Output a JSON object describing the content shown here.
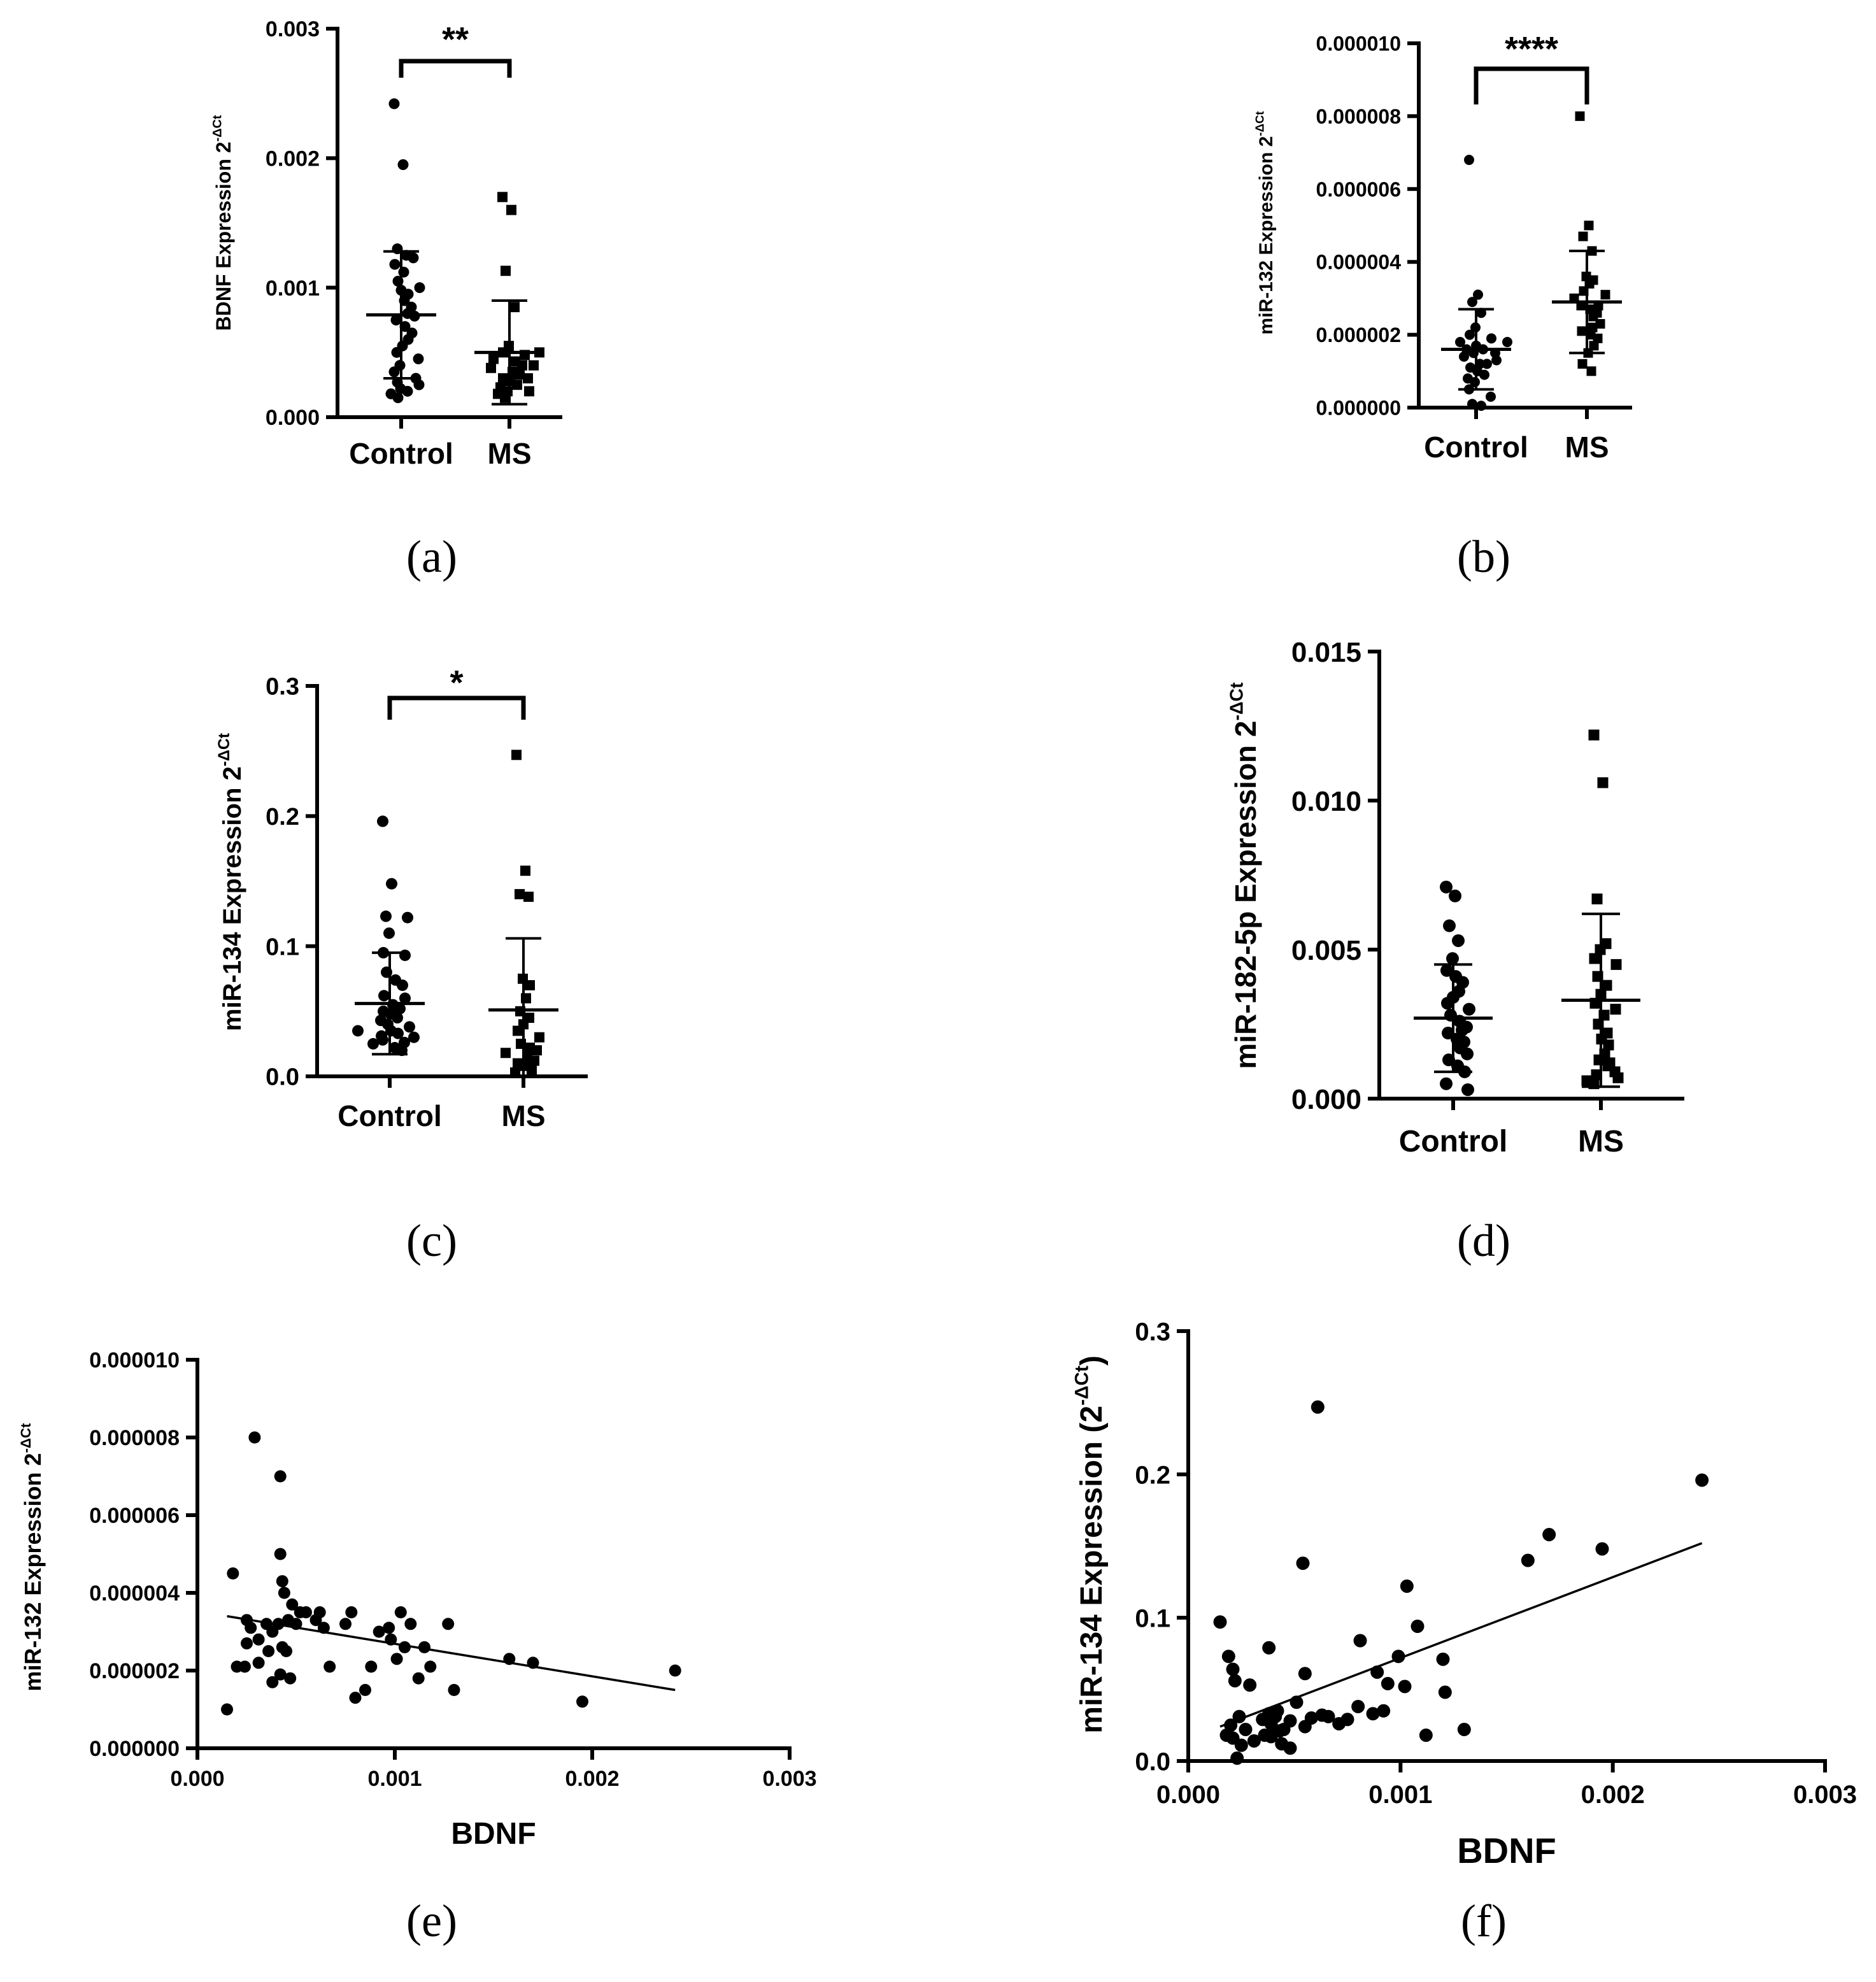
{
  "figure": {
    "panels": [
      "(a)",
      "(b)",
      "(c)",
      "(d)",
      "(e)",
      "(f)"
    ]
  },
  "chart_data": [
    {
      "panel": "(a)",
      "type": "scatter",
      "ylabel": "BDNF Expression 2",
      "ylabel_sup": "-ΔCt",
      "categories": [
        "Control",
        "MS"
      ],
      "yticks": [
        "0.000",
        "0.001",
        "0.002",
        "0.003"
      ],
      "ylim": [
        0,
        0.003
      ],
      "significance": "**",
      "groups": [
        {
          "name": "Control",
          "marker": "circle",
          "mean": 0.00079,
          "sd": 0.00049,
          "values": [
            0.00242,
            0.00195,
            0.0013,
            0.00125,
            0.00123,
            0.00118,
            0.00112,
            0.00105,
            0.001,
            0.00098,
            0.00095,
            0.0009,
            0.00085,
            0.0008,
            0.00078,
            0.00075,
            0.0007,
            0.00065,
            0.0006,
            0.00055,
            0.0005,
            0.00045,
            0.0004,
            0.00035,
            0.0003,
            0.00027,
            0.00025,
            0.00022,
            0.0002,
            0.00018,
            0.00015
          ]
        },
        {
          "name": "MS",
          "marker": "square",
          "mean": 0.0005,
          "sd": 0.0004,
          "values": [
            0.0017,
            0.0016,
            0.00113,
            0.00085,
            0.00055,
            0.0005,
            0.00048,
            0.00045,
            0.00043,
            0.0004,
            0.00038,
            0.00035,
            0.00033,
            0.0003,
            0.00028,
            0.00025,
            0.00023,
            0.0002,
            0.0002,
            0.00018,
            0.00015,
            0.0005,
            0.0004,
            0.0003
          ]
        }
      ]
    },
    {
      "panel": "(b)",
      "type": "scatter",
      "ylabel": "miR-132 Expression 2",
      "ylabel_sup": "-ΔCt",
      "categories": [
        "Control",
        "MS"
      ],
      "yticks": [
        "0.000000",
        "0.000002",
        "0.000004",
        "0.000006",
        "0.000008",
        "0.000010"
      ],
      "ylim": [
        0,
        1e-05
      ],
      "significance": "****",
      "groups": [
        {
          "name": "Control",
          "marker": "circle",
          "mean": 1.6e-06,
          "sd": 1.1e-06,
          "values": [
            6.8e-06,
            3.1e-06,
            2.9e-06,
            2.6e-06,
            2.2e-06,
            2e-06,
            1.9e-06,
            1.8e-06,
            1.8e-06,
            1.7e-06,
            1.6e-06,
            1.6e-06,
            1.5e-06,
            1.5e-06,
            1.4e-06,
            1.3e-06,
            1.2e-06,
            1.2e-06,
            1.1e-06,
            1e-06,
            9e-07,
            8e-07,
            7e-07,
            5e-07,
            3e-07,
            1e-07,
            5e-08
          ]
        },
        {
          "name": "MS",
          "marker": "square",
          "mean": 2.9e-06,
          "sd": 1.4e-06,
          "values": [
            8e-06,
            5e-06,
            4.7e-06,
            4.3e-06,
            3.6e-06,
            3.5e-06,
            3.4e-06,
            3.2e-06,
            3.1e-06,
            3e-06,
            2.8e-06,
            2.7e-06,
            2.6e-06,
            2.5e-06,
            2.3e-06,
            2.1e-06,
            2e-06,
            1.9e-06,
            1.7e-06,
            1.5e-06,
            1.2e-06,
            1e-06,
            2.8e-06,
            2.2e-06
          ]
        }
      ]
    },
    {
      "panel": "(c)",
      "type": "scatter",
      "ylabel": "miR-134 Expression 2",
      "ylabel_sup": "-ΔCt",
      "categories": [
        "Control",
        "MS"
      ],
      "yticks": [
        "0.0",
        "0.1",
        "0.2",
        "0.3"
      ],
      "ylim": [
        0,
        0.3
      ],
      "significance": "*",
      "groups": [
        {
          "name": "Control",
          "marker": "circle",
          "mean": 0.056,
          "sd": 0.039,
          "values": [
            0.196,
            0.148,
            0.123,
            0.122,
            0.11,
            0.095,
            0.093,
            0.08,
            0.074,
            0.07,
            0.062,
            0.055,
            0.052,
            0.05,
            0.048,
            0.045,
            0.043,
            0.04,
            0.038,
            0.035,
            0.033,
            0.031,
            0.03,
            0.028,
            0.026,
            0.025,
            0.022,
            0.02,
            0.035,
            0.06
          ]
        },
        {
          "name": "MS",
          "marker": "square",
          "mean": 0.051,
          "sd": 0.055,
          "values": [
            0.247,
            0.158,
            0.14,
            0.138,
            0.075,
            0.07,
            0.06,
            0.05,
            0.045,
            0.04,
            0.035,
            0.03,
            0.025,
            0.022,
            0.02,
            0.018,
            0.015,
            0.012,
            0.01,
            0.008,
            0.005,
            0.003
          ]
        }
      ]
    },
    {
      "panel": "(d)",
      "type": "scatter",
      "ylabel": "miR-182-5p Expression 2",
      "ylabel_sup": "-ΔCt",
      "categories": [
        "Control",
        "MS"
      ],
      "yticks": [
        "0.000",
        "0.005",
        "0.010",
        "0.015"
      ],
      "ylim": [
        0,
        0.015
      ],
      "groups": [
        {
          "name": "Control",
          "marker": "circle",
          "mean": 0.0027,
          "sd": 0.0018,
          "values": [
            0.0071,
            0.0068,
            0.0058,
            0.0053,
            0.0047,
            0.0043,
            0.0041,
            0.0039,
            0.0036,
            0.0034,
            0.0032,
            0.003,
            0.0028,
            0.0026,
            0.0024,
            0.0022,
            0.002,
            0.0019,
            0.0017,
            0.0015,
            0.0013,
            0.0011,
            0.0009,
            0.0005,
            0.0003,
            0.0023
          ]
        },
        {
          "name": "MS",
          "marker": "square",
          "mean": 0.0033,
          "sd": 0.0029,
          "values": [
            0.0122,
            0.0106,
            0.0067,
            0.0052,
            0.005,
            0.0047,
            0.0045,
            0.0041,
            0.0038,
            0.0035,
            0.0032,
            0.0028,
            0.0025,
            0.0022,
            0.002,
            0.0018,
            0.0015,
            0.0013,
            0.0011,
            0.0009,
            0.0008,
            0.0007,
            0.0006,
            0.0005,
            0.003,
            0.0012
          ]
        }
      ]
    },
    {
      "panel": "(e)",
      "type": "scatter",
      "xlabel": "BDNF",
      "ylabel": "miR-132 Expression 2",
      "ylabel_sup": "-ΔCt",
      "xticks": [
        "0.000",
        "0.001",
        "0.002",
        "0.003"
      ],
      "yticks": [
        "0.000000",
        "0.000002",
        "0.000004",
        "0.000006",
        "0.000008",
        "0.000010"
      ],
      "xlim": [
        0,
        0.003
      ],
      "ylim": [
        0,
        1e-05
      ],
      "regression": {
        "x": [
          0.00015,
          0.00242
        ],
        "y": [
          3.4e-06,
          1.5e-06
        ]
      },
      "points": [
        [
          0.00018,
          4.5e-06
        ],
        [
          0.00029,
          8e-06
        ],
        [
          0.00042,
          7e-06
        ],
        [
          0.00042,
          5e-06
        ],
        [
          0.00043,
          4.3e-06
        ],
        [
          0.00044,
          4e-06
        ],
        [
          0.00048,
          3.7e-06
        ],
        [
          0.00052,
          3.5e-06
        ],
        [
          0.00055,
          3.5e-06
        ],
        [
          0.0006,
          3.3e-06
        ],
        [
          0.00062,
          3.5e-06
        ],
        [
          0.00064,
          3.1e-06
        ],
        [
          0.00025,
          3.3e-06
        ],
        [
          0.00027,
          3.1e-06
        ],
        [
          0.00035,
          3.2e-06
        ],
        [
          0.00038,
          3e-06
        ],
        [
          0.00041,
          3.2e-06
        ],
        [
          0.00046,
          3.3e-06
        ],
        [
          0.0005,
          3.2e-06
        ],
        [
          0.00075,
          3.2e-06
        ],
        [
          0.00078,
          3.5e-06
        ],
        [
          0.00097,
          3.1e-06
        ],
        [
          0.00103,
          3.5e-06
        ],
        [
          0.00108,
          3.2e-06
        ],
        [
          0.00115,
          2.6e-06
        ],
        [
          0.00127,
          3.2e-06
        ],
        [
          0.00025,
          2.7e-06
        ],
        [
          0.00031,
          2.8e-06
        ],
        [
          0.00036,
          2.5e-06
        ],
        [
          0.00043,
          2.6e-06
        ],
        [
          0.00045,
          2.5e-06
        ],
        [
          0.00067,
          2.1e-06
        ],
        [
          0.00088,
          2.1e-06
        ],
        [
          0.00098,
          2.8e-06
        ],
        [
          0.00101,
          2.3e-06
        ],
        [
          0.00105,
          2.6e-06
        ],
        [
          0.00112,
          1.8e-06
        ],
        [
          0.00118,
          2.1e-06
        ],
        [
          0.0013,
          1.5e-06
        ],
        [
          0.00158,
          2.3e-06
        ],
        [
          0.0017,
          2.2e-06
        ],
        [
          0.00242,
          2e-06
        ],
        [
          0.00195,
          1.2e-06
        ],
        [
          0.00085,
          1.5e-06
        ],
        [
          0.00015,
          1e-06
        ],
        [
          0.0002,
          2.1e-06
        ],
        [
          0.00024,
          2.1e-06
        ],
        [
          0.00031,
          2.2e-06
        ],
        [
          0.00038,
          1.7e-06
        ],
        [
          0.00042,
          1.9e-06
        ],
        [
          0.00047,
          1.8e-06
        ],
        [
          0.0008,
          1.3e-06
        ],
        [
          0.00092,
          3e-06
        ]
      ]
    },
    {
      "panel": "(f)",
      "type": "scatter",
      "xlabel": "BDNF",
      "ylabel": "miR-134 Expression (2",
      "ylabel_sup": "-ΔCt",
      "ylabel_end": ")",
      "xticks": [
        "0.000",
        "0.001",
        "0.002",
        "0.003"
      ],
      "yticks": [
        "0.0",
        "0.1",
        "0.2",
        "0.3"
      ],
      "xlim": [
        0,
        0.003
      ],
      "ylim": [
        0,
        0.3
      ],
      "regression": {
        "x": [
          0.00015,
          0.00242
        ],
        "y": [
          0.024,
          0.152
        ]
      },
      "points": [
        [
          0.00061,
          0.247
        ],
        [
          0.00242,
          0.196
        ],
        [
          0.0017,
          0.158
        ],
        [
          0.00195,
          0.148
        ],
        [
          0.0016,
          0.14
        ],
        [
          0.00054,
          0.138
        ],
        [
          0.00103,
          0.122
        ],
        [
          0.00108,
          0.094
        ],
        [
          0.00015,
          0.097
        ],
        [
          0.00081,
          0.084
        ],
        [
          0.00038,
          0.079
        ],
        [
          0.00099,
          0.073
        ],
        [
          0.00019,
          0.073
        ],
        [
          0.0012,
          0.071
        ],
        [
          0.00021,
          0.064
        ],
        [
          0.00089,
          0.062
        ],
        [
          0.00055,
          0.061
        ],
        [
          0.00022,
          0.056
        ],
        [
          0.00029,
          0.053
        ],
        [
          0.00094,
          0.054
        ],
        [
          0.00102,
          0.052
        ],
        [
          0.00121,
          0.048
        ],
        [
          0.00051,
          0.041
        ],
        [
          0.00038,
          0.033
        ],
        [
          0.0008,
          0.038
        ],
        [
          0.00092,
          0.035
        ],
        [
          0.00087,
          0.033
        ],
        [
          0.00063,
          0.032
        ],
        [
          0.00058,
          0.03
        ],
        [
          0.00066,
          0.031
        ],
        [
          0.00024,
          0.031
        ],
        [
          0.00042,
          0.035
        ],
        [
          0.00075,
          0.029
        ],
        [
          0.00071,
          0.026
        ],
        [
          0.00048,
          0.028
        ],
        [
          0.00055,
          0.024
        ],
        [
          0.00035,
          0.029
        ],
        [
          0.00039,
          0.026
        ],
        [
          0.0002,
          0.025
        ],
        [
          0.00027,
          0.022
        ],
        [
          0.00043,
          0.021
        ],
        [
          0.00036,
          0.018
        ],
        [
          0.00018,
          0.018
        ],
        [
          0.00039,
          0.017
        ],
        [
          0.00044,
          0.012
        ],
        [
          0.00048,
          0.009
        ],
        [
          0.00031,
          0.014
        ],
        [
          0.00025,
          0.011
        ],
        [
          0.00021,
          0.016
        ],
        [
          0.00023,
          0.002
        ],
        [
          0.00112,
          0.018
        ],
        [
          0.0013,
          0.022
        ],
        [
          0.00045,
          0.022
        ],
        [
          0.00041,
          0.031
        ]
      ]
    }
  ]
}
